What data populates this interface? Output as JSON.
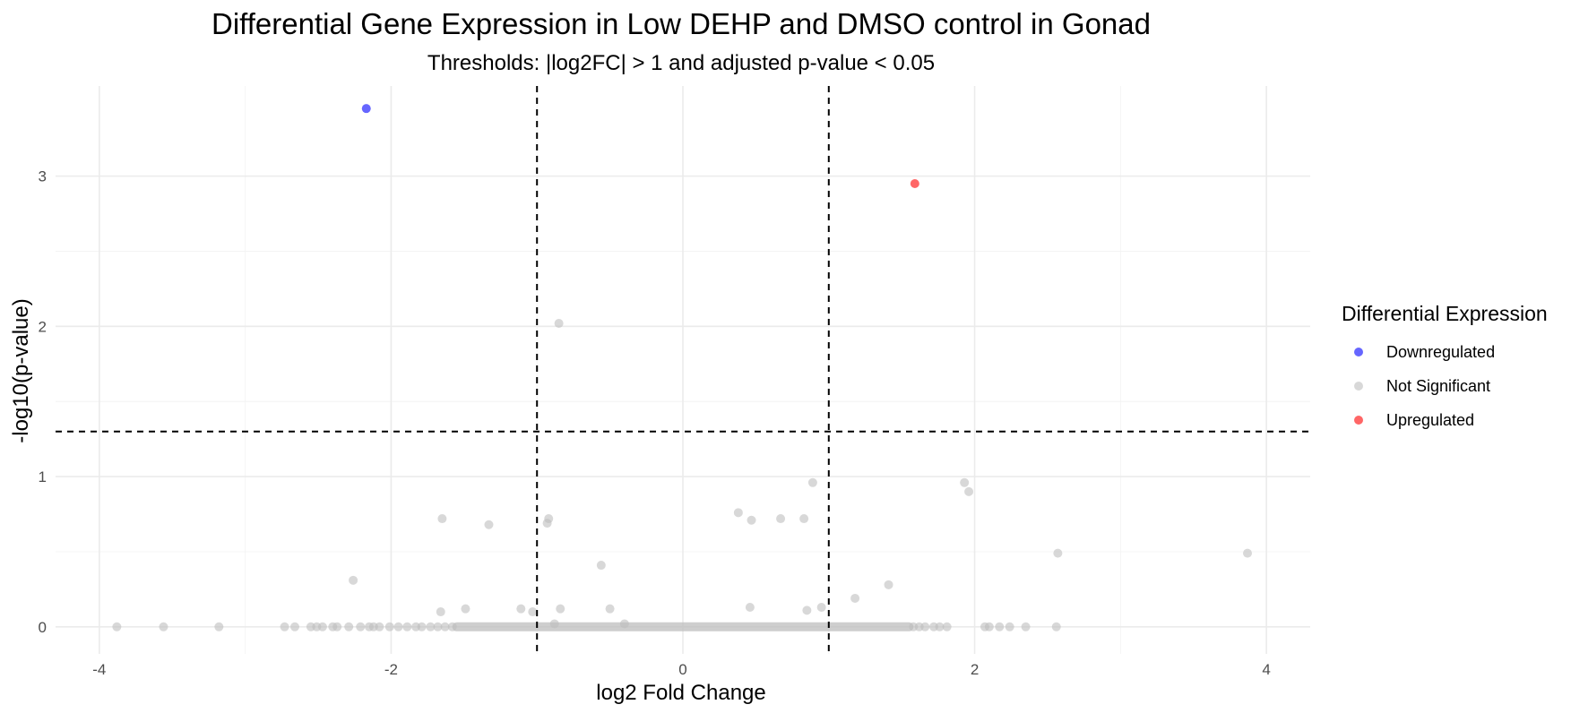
{
  "chart_data": {
    "type": "scatter",
    "title": "Differential Gene Expression in Low DEHP and DMSO control in Gonad",
    "subtitle": "Thresholds: |log2FC| > 1 and adjusted p-value < 0.05",
    "xlabel": "log2 Fold Change",
    "ylabel": "-log10(p-value)",
    "xlim": [
      -4.3,
      4.3
    ],
    "ylim": [
      -0.18,
      3.6
    ],
    "xticks": [
      -4,
      -2,
      0,
      2,
      4
    ],
    "yticks": [
      0,
      1,
      2,
      3
    ],
    "grid": true,
    "legend": {
      "title": "Differential Expression",
      "position": "right",
      "entries": [
        {
          "label": "Downregulated",
          "color": "#0000ff"
        },
        {
          "label": "Not Significant",
          "color": "#bebebe"
        },
        {
          "label": "Upregulated",
          "color": "#ff0000"
        }
      ]
    },
    "thresholds": {
      "x": [
        -1,
        1
      ],
      "y": 1.3
    },
    "series": [
      {
        "name": "Downregulated",
        "color": "#0000ff",
        "points": [
          [
            -2.17,
            3.45
          ]
        ]
      },
      {
        "name": "Upregulated",
        "color": "#ff0000",
        "points": [
          [
            1.59,
            2.95
          ]
        ]
      },
      {
        "name": "Not Significant",
        "color": "#bebebe",
        "points": [
          [
            -0.85,
            2.02
          ],
          [
            -1.65,
            0.72
          ],
          [
            -1.33,
            0.68
          ],
          [
            -0.92,
            0.72
          ],
          [
            -0.93,
            0.69
          ],
          [
            -2.26,
            0.31
          ],
          [
            -0.56,
            0.41
          ],
          [
            -1.49,
            0.12
          ],
          [
            -1.66,
            0.1
          ],
          [
            -1.11,
            0.12
          ],
          [
            -1.03,
            0.1
          ],
          [
            -0.84,
            0.12
          ],
          [
            -0.5,
            0.12
          ],
          [
            0.38,
            0.76
          ],
          [
            0.47,
            0.71
          ],
          [
            0.67,
            0.72
          ],
          [
            0.83,
            0.72
          ],
          [
            0.89,
            0.96
          ],
          [
            1.93,
            0.96
          ],
          [
            1.96,
            0.9
          ],
          [
            2.57,
            0.49
          ],
          [
            3.87,
            0.49
          ],
          [
            1.41,
            0.28
          ],
          [
            1.18,
            0.19
          ],
          [
            0.46,
            0.13
          ],
          [
            0.85,
            0.11
          ],
          [
            0.95,
            0.13
          ],
          [
            -0.4,
            0.02
          ],
          [
            -0.88,
            0.02
          ],
          [
            -3.88,
            0
          ],
          [
            -3.56,
            0
          ],
          [
            -3.18,
            0
          ],
          [
            -2.73,
            0
          ],
          [
            -2.66,
            0
          ],
          [
            -2.55,
            0
          ],
          [
            -2.51,
            0
          ],
          [
            -2.47,
            0
          ],
          [
            -2.4,
            0
          ],
          [
            -2.37,
            0
          ],
          [
            -2.29,
            0
          ],
          [
            -2.21,
            0
          ],
          [
            -2.15,
            0
          ],
          [
            -2.12,
            0
          ],
          [
            -2.08,
            0
          ],
          [
            -2.01,
            0
          ],
          [
            -1.95,
            0
          ],
          [
            -1.89,
            0
          ],
          [
            -1.83,
            0
          ],
          [
            -1.79,
            0
          ],
          [
            -1.73,
            0
          ],
          [
            -1.68,
            0
          ],
          [
            -1.63,
            0
          ],
          [
            -1.58,
            0
          ],
          [
            1.58,
            0
          ],
          [
            1.62,
            0
          ],
          [
            1.66,
            0
          ],
          [
            1.72,
            0
          ],
          [
            1.76,
            0
          ],
          [
            1.81,
            0
          ],
          [
            2.07,
            0
          ],
          [
            2.1,
            0
          ],
          [
            2.17,
            0
          ],
          [
            2.24,
            0
          ],
          [
            2.35,
            0
          ],
          [
            2.56,
            0
          ]
        ],
        "zero_band": [
          -1.55,
          1.55
        ]
      }
    ]
  }
}
